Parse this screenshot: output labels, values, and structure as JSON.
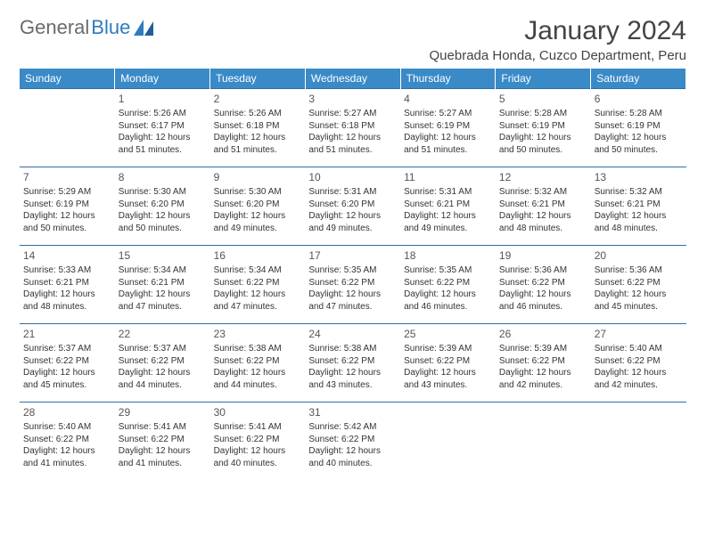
{
  "logo": {
    "text_gray": "General",
    "text_blue": "Blue"
  },
  "header": {
    "title": "January 2024",
    "location": "Quebrada Honda, Cuzco Department, Peru"
  },
  "colors": {
    "header_bg": "#3a8ac8",
    "header_text": "#ffffff",
    "row_border": "#2f6fa6",
    "body_text": "#333333",
    "logo_gray": "#6b6b6b",
    "logo_blue": "#2f7bbf"
  },
  "weekdays": [
    "Sunday",
    "Monday",
    "Tuesday",
    "Wednesday",
    "Thursday",
    "Friday",
    "Saturday"
  ],
  "weeks": [
    [
      null,
      {
        "n": "1",
        "sr": "Sunrise: 5:26 AM",
        "ss": "Sunset: 6:17 PM",
        "d1": "Daylight: 12 hours",
        "d2": "and 51 minutes."
      },
      {
        "n": "2",
        "sr": "Sunrise: 5:26 AM",
        "ss": "Sunset: 6:18 PM",
        "d1": "Daylight: 12 hours",
        "d2": "and 51 minutes."
      },
      {
        "n": "3",
        "sr": "Sunrise: 5:27 AM",
        "ss": "Sunset: 6:18 PM",
        "d1": "Daylight: 12 hours",
        "d2": "and 51 minutes."
      },
      {
        "n": "4",
        "sr": "Sunrise: 5:27 AM",
        "ss": "Sunset: 6:19 PM",
        "d1": "Daylight: 12 hours",
        "d2": "and 51 minutes."
      },
      {
        "n": "5",
        "sr": "Sunrise: 5:28 AM",
        "ss": "Sunset: 6:19 PM",
        "d1": "Daylight: 12 hours",
        "d2": "and 50 minutes."
      },
      {
        "n": "6",
        "sr": "Sunrise: 5:28 AM",
        "ss": "Sunset: 6:19 PM",
        "d1": "Daylight: 12 hours",
        "d2": "and 50 minutes."
      }
    ],
    [
      {
        "n": "7",
        "sr": "Sunrise: 5:29 AM",
        "ss": "Sunset: 6:19 PM",
        "d1": "Daylight: 12 hours",
        "d2": "and 50 minutes."
      },
      {
        "n": "8",
        "sr": "Sunrise: 5:30 AM",
        "ss": "Sunset: 6:20 PM",
        "d1": "Daylight: 12 hours",
        "d2": "and 50 minutes."
      },
      {
        "n": "9",
        "sr": "Sunrise: 5:30 AM",
        "ss": "Sunset: 6:20 PM",
        "d1": "Daylight: 12 hours",
        "d2": "and 49 minutes."
      },
      {
        "n": "10",
        "sr": "Sunrise: 5:31 AM",
        "ss": "Sunset: 6:20 PM",
        "d1": "Daylight: 12 hours",
        "d2": "and 49 minutes."
      },
      {
        "n": "11",
        "sr": "Sunrise: 5:31 AM",
        "ss": "Sunset: 6:21 PM",
        "d1": "Daylight: 12 hours",
        "d2": "and 49 minutes."
      },
      {
        "n": "12",
        "sr": "Sunrise: 5:32 AM",
        "ss": "Sunset: 6:21 PM",
        "d1": "Daylight: 12 hours",
        "d2": "and 48 minutes."
      },
      {
        "n": "13",
        "sr": "Sunrise: 5:32 AM",
        "ss": "Sunset: 6:21 PM",
        "d1": "Daylight: 12 hours",
        "d2": "and 48 minutes."
      }
    ],
    [
      {
        "n": "14",
        "sr": "Sunrise: 5:33 AM",
        "ss": "Sunset: 6:21 PM",
        "d1": "Daylight: 12 hours",
        "d2": "and 48 minutes."
      },
      {
        "n": "15",
        "sr": "Sunrise: 5:34 AM",
        "ss": "Sunset: 6:21 PM",
        "d1": "Daylight: 12 hours",
        "d2": "and 47 minutes."
      },
      {
        "n": "16",
        "sr": "Sunrise: 5:34 AM",
        "ss": "Sunset: 6:22 PM",
        "d1": "Daylight: 12 hours",
        "d2": "and 47 minutes."
      },
      {
        "n": "17",
        "sr": "Sunrise: 5:35 AM",
        "ss": "Sunset: 6:22 PM",
        "d1": "Daylight: 12 hours",
        "d2": "and 47 minutes."
      },
      {
        "n": "18",
        "sr": "Sunrise: 5:35 AM",
        "ss": "Sunset: 6:22 PM",
        "d1": "Daylight: 12 hours",
        "d2": "and 46 minutes."
      },
      {
        "n": "19",
        "sr": "Sunrise: 5:36 AM",
        "ss": "Sunset: 6:22 PM",
        "d1": "Daylight: 12 hours",
        "d2": "and 46 minutes."
      },
      {
        "n": "20",
        "sr": "Sunrise: 5:36 AM",
        "ss": "Sunset: 6:22 PM",
        "d1": "Daylight: 12 hours",
        "d2": "and 45 minutes."
      }
    ],
    [
      {
        "n": "21",
        "sr": "Sunrise: 5:37 AM",
        "ss": "Sunset: 6:22 PM",
        "d1": "Daylight: 12 hours",
        "d2": "and 45 minutes."
      },
      {
        "n": "22",
        "sr": "Sunrise: 5:37 AM",
        "ss": "Sunset: 6:22 PM",
        "d1": "Daylight: 12 hours",
        "d2": "and 44 minutes."
      },
      {
        "n": "23",
        "sr": "Sunrise: 5:38 AM",
        "ss": "Sunset: 6:22 PM",
        "d1": "Daylight: 12 hours",
        "d2": "and 44 minutes."
      },
      {
        "n": "24",
        "sr": "Sunrise: 5:38 AM",
        "ss": "Sunset: 6:22 PM",
        "d1": "Daylight: 12 hours",
        "d2": "and 43 minutes."
      },
      {
        "n": "25",
        "sr": "Sunrise: 5:39 AM",
        "ss": "Sunset: 6:22 PM",
        "d1": "Daylight: 12 hours",
        "d2": "and 43 minutes."
      },
      {
        "n": "26",
        "sr": "Sunrise: 5:39 AM",
        "ss": "Sunset: 6:22 PM",
        "d1": "Daylight: 12 hours",
        "d2": "and 42 minutes."
      },
      {
        "n": "27",
        "sr": "Sunrise: 5:40 AM",
        "ss": "Sunset: 6:22 PM",
        "d1": "Daylight: 12 hours",
        "d2": "and 42 minutes."
      }
    ],
    [
      {
        "n": "28",
        "sr": "Sunrise: 5:40 AM",
        "ss": "Sunset: 6:22 PM",
        "d1": "Daylight: 12 hours",
        "d2": "and 41 minutes."
      },
      {
        "n": "29",
        "sr": "Sunrise: 5:41 AM",
        "ss": "Sunset: 6:22 PM",
        "d1": "Daylight: 12 hours",
        "d2": "and 41 minutes."
      },
      {
        "n": "30",
        "sr": "Sunrise: 5:41 AM",
        "ss": "Sunset: 6:22 PM",
        "d1": "Daylight: 12 hours",
        "d2": "and 40 minutes."
      },
      {
        "n": "31",
        "sr": "Sunrise: 5:42 AM",
        "ss": "Sunset: 6:22 PM",
        "d1": "Daylight: 12 hours",
        "d2": "and 40 minutes."
      },
      null,
      null,
      null
    ]
  ]
}
